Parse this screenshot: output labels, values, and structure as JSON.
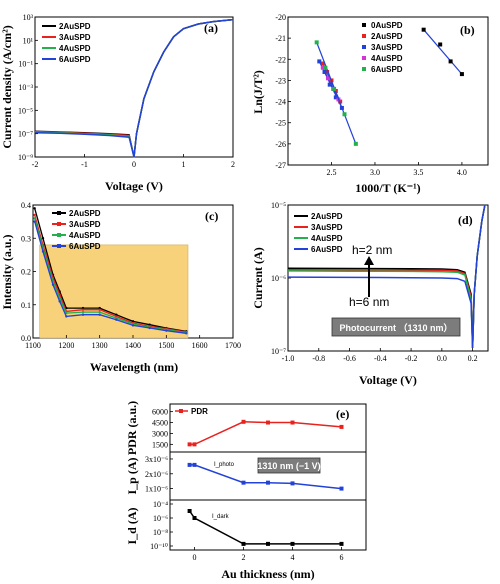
{
  "chart_data": [
    {
      "id": "a",
      "type": "line",
      "panel_label": "(a)",
      "xlabel": "Voltage (V)",
      "ylabel": "Current density (A/cm²)",
      "xlim": [
        -2,
        2
      ],
      "ylim_exp": [
        -9,
        3
      ],
      "yscale": "log",
      "xticks": [
        "-2",
        "-1",
        "0",
        "1",
        "2"
      ],
      "yticks": [
        "10⁻⁹",
        "10⁻⁷",
        "10⁻⁵",
        "10⁻³",
        "10⁻¹",
        "10¹",
        "10³"
      ],
      "legend": [
        "2AuSPD",
        "3AuSPD",
        "4AuSPD",
        "6AuSPD"
      ],
      "colors": [
        "#000000",
        "#e8231f",
        "#22b14c",
        "#2342d8"
      ],
      "series": [
        {
          "name": "2AuSPD",
          "x": [
            -2,
            -1.5,
            -1,
            -0.5,
            -0.1,
            0,
            0.05,
            0.2,
            0.4,
            0.6,
            0.8,
            1.0,
            1.3,
            1.6,
            2.0
          ],
          "y": [
            1.6e-07,
            1.4e-07,
            1.2e-07,
            1e-07,
            8e-08,
            1e-09,
            1e-07,
            0.0001,
            0.02,
            1.0,
            20,
            100,
            250,
            400,
            600
          ]
        },
        {
          "name": "3AuSPD",
          "x": [
            -2,
            -1.5,
            -1,
            -0.5,
            -0.1,
            0,
            0.05,
            0.2,
            0.4,
            0.6,
            0.8,
            1.0,
            1.3,
            1.6,
            2.0
          ],
          "y": [
            1.5e-07,
            1.3e-07,
            1.1e-07,
            9e-08,
            7e-08,
            1e-09,
            1e-07,
            0.0001,
            0.02,
            1.0,
            20,
            100,
            250,
            400,
            600
          ]
        },
        {
          "name": "4AuSPD",
          "x": [
            -2,
            -1.5,
            -1,
            -0.5,
            -0.1,
            0,
            0.05,
            0.2,
            0.4,
            0.6,
            0.8,
            1.0,
            1.3,
            1.6,
            2.0
          ],
          "y": [
            1.3e-07,
            1.2e-07,
            1e-07,
            8e-08,
            6e-08,
            1e-09,
            1e-07,
            0.0001,
            0.02,
            1.0,
            20,
            100,
            250,
            400,
            600
          ]
        },
        {
          "name": "6AuSPD",
          "x": [
            -2,
            -1.5,
            -1,
            -0.5,
            -0.1,
            0,
            0.05,
            0.2,
            0.4,
            0.6,
            0.8,
            1.0,
            1.3,
            1.6,
            2.0
          ],
          "y": [
            1.2e-07,
            1.1e-07,
            9e-08,
            7e-08,
            5e-08,
            1e-09,
            1e-07,
            0.0001,
            0.02,
            1.0,
            20,
            100,
            250,
            400,
            600
          ]
        }
      ]
    },
    {
      "id": "b",
      "type": "scatter",
      "panel_label": "(b)",
      "xlabel": "1000/T (K⁻¹)",
      "ylabel": "Ln(J/T²)",
      "xlim": [
        2.0,
        4.3
      ],
      "ylim": [
        -27,
        -20
      ],
      "xticks": [
        "2.5",
        "3.0",
        "3.5",
        "4.0"
      ],
      "yticks": [
        "-20",
        "-21",
        "-22",
        "-23",
        "-24",
        "-25",
        "-26",
        "-27"
      ],
      "legend": [
        "0AuSPD",
        "2AuSPD",
        "3AuSPD",
        "4AuSPD",
        "6AuSPD"
      ],
      "colors": [
        "#000000",
        "#e8231f",
        "#2342d8",
        "#d633d6",
        "#22b14c"
      ],
      "series": [
        {
          "name": "0AuSPD",
          "x": [
            3.56,
            3.75,
            3.87,
            4.0
          ],
          "y": [
            -20.6,
            -21.3,
            -22.1,
            -22.7
          ]
        },
        {
          "name": "2AuSPD",
          "x": [
            2.4,
            2.45,
            2.5,
            2.55,
            2.6
          ],
          "y": [
            -22.2,
            -22.6,
            -23.0,
            -23.5,
            -24.0
          ]
        },
        {
          "name": "3AuSPD",
          "x": [
            2.36,
            2.42,
            2.48,
            2.55,
            2.62
          ],
          "y": [
            -22.1,
            -22.6,
            -23.2,
            -23.8,
            -24.3
          ]
        },
        {
          "name": "4AuSPD",
          "x": [
            2.4,
            2.46,
            2.52,
            2.58
          ],
          "y": [
            -22.4,
            -22.9,
            -23.4,
            -23.9
          ]
        },
        {
          "name": "6AuSPD",
          "x": [
            2.33,
            2.43,
            2.53,
            2.65,
            2.78
          ],
          "y": [
            -21.2,
            -22.4,
            -23.4,
            -24.6,
            -26.0
          ]
        }
      ]
    },
    {
      "id": "c",
      "type": "line",
      "panel_label": "(c)",
      "xlabel": "Wavelength (nm)",
      "ylabel": "Intensity (a.u.)",
      "xlim": [
        1100,
        1700
      ],
      "ylim": [
        0.0,
        0.4
      ],
      "xticks": [
        "1100",
        "1200",
        "1300",
        "1400",
        "1500",
        "1600",
        "1700"
      ],
      "yticks": [
        "0.0",
        "0.1",
        "0.2",
        "0.3",
        "0.4"
      ],
      "highlight_range_x": [
        1120,
        1565
      ],
      "highlight_range_y": [
        0.0,
        0.28
      ],
      "highlight_color": "#f7d27a",
      "legend": [
        "2AuSPD",
        "3AuSPD",
        "4AuSPD",
        "6AuSPD"
      ],
      "colors": [
        "#000000",
        "#e8231f",
        "#22b14c",
        "#2342d8"
      ],
      "series": [
        {
          "name": "2AuSPD",
          "x": [
            1105,
            1130,
            1160,
            1180,
            1200,
            1250,
            1300,
            1350,
            1400,
            1450,
            1500,
            1560
          ],
          "y": [
            0.39,
            0.3,
            0.19,
            0.14,
            0.09,
            0.09,
            0.09,
            0.07,
            0.05,
            0.04,
            0.03,
            0.02
          ]
        },
        {
          "name": "3AuSPD",
          "x": [
            1105,
            1130,
            1160,
            1180,
            1200,
            1250,
            1300,
            1350,
            1400,
            1450,
            1500,
            1560
          ],
          "y": [
            0.37,
            0.28,
            0.18,
            0.13,
            0.08,
            0.085,
            0.085,
            0.065,
            0.045,
            0.035,
            0.028,
            0.018
          ]
        },
        {
          "name": "4AuSPD",
          "x": [
            1105,
            1130,
            1160,
            1180,
            1200,
            1250,
            1300,
            1350,
            1400,
            1450,
            1500,
            1560
          ],
          "y": [
            0.36,
            0.27,
            0.17,
            0.12,
            0.075,
            0.078,
            0.078,
            0.06,
            0.042,
            0.032,
            0.025,
            0.016
          ]
        },
        {
          "name": "6AuSPD",
          "x": [
            1105,
            1130,
            1160,
            1180,
            1200,
            1250,
            1300,
            1350,
            1400,
            1450,
            1500,
            1560
          ],
          "y": [
            0.35,
            0.26,
            0.16,
            0.11,
            0.065,
            0.07,
            0.07,
            0.055,
            0.038,
            0.03,
            0.022,
            0.014
          ]
        }
      ]
    },
    {
      "id": "d",
      "type": "line",
      "panel_label": "(d)",
      "xlabel": "Voltage (V)",
      "ylabel": "Current (A)",
      "xlim": [
        -1.0,
        0.3
      ],
      "ylim_exp": [
        -7,
        -5
      ],
      "yscale": "log",
      "xticks": [
        "-1.0",
        "-0.8",
        "-0.6",
        "-0.4",
        "-0.2",
        "0.0",
        "0.2"
      ],
      "yticks": [
        "10⁻⁷",
        "10⁻⁶",
        "10⁻⁵"
      ],
      "legend": [
        "2AuSPD",
        "3AuSPD",
        "4AuSPD",
        "6AuSPD"
      ],
      "colors": [
        "#000000",
        "#e8231f",
        "#22b14c",
        "#2342d8"
      ],
      "annotations": [
        "h=2 nm",
        "h=6 nm"
      ],
      "label_box": "Photocurrent （1310 nm）",
      "series": [
        {
          "name": "2AuSPD",
          "x": [
            -1.0,
            -0.6,
            -0.2,
            0.0,
            0.1,
            0.15,
            0.19,
            0.2,
            0.21,
            0.23,
            0.26,
            0.28
          ],
          "y": [
            1.36e-06,
            1.35e-06,
            1.34e-06,
            1.33e-06,
            1.3e-06,
            1.2e-06,
            6e-07,
            1.1e-07,
            6e-07,
            2e-06,
            6e-06,
            1e-05
          ]
        },
        {
          "name": "3AuSPD",
          "x": [
            -1.0,
            -0.6,
            -0.2,
            0.0,
            0.1,
            0.15,
            0.19,
            0.2,
            0.21,
            0.23,
            0.26,
            0.28
          ],
          "y": [
            1.3e-06,
            1.29e-06,
            1.28e-06,
            1.27e-06,
            1.25e-06,
            1.15e-06,
            5.5e-07,
            1.1e-07,
            6e-07,
            2e-06,
            6e-06,
            1e-05
          ]
        },
        {
          "name": "4AuSPD",
          "x": [
            -1.0,
            -0.6,
            -0.2,
            0.0,
            0.1,
            0.15,
            0.19,
            0.2,
            0.21,
            0.23,
            0.26,
            0.28
          ],
          "y": [
            1.25e-06,
            1.24e-06,
            1.23e-06,
            1.22e-06,
            1.2e-06,
            1.1e-06,
            5e-07,
            1.1e-07,
            6e-07,
            2e-06,
            6e-06,
            1e-05
          ]
        },
        {
          "name": "6AuSPD",
          "x": [
            -1.0,
            -0.6,
            -0.2,
            0.0,
            0.1,
            0.15,
            0.19,
            0.2,
            0.21,
            0.23,
            0.26,
            0.28
          ],
          "y": [
            1.03e-06,
            1.02e-06,
            1.01e-06,
            1e-06,
            9.8e-07,
            9e-07,
            4.5e-07,
            1.1e-07,
            6e-07,
            2e-06,
            6e-06,
            1e-05
          ]
        }
      ]
    },
    {
      "id": "e",
      "type": "line",
      "panel_label": "(e)",
      "xlabel": "Au thickness (nm)",
      "xlim": [
        -1,
        7
      ],
      "xticks": [
        "0",
        "2",
        "4",
        "6"
      ],
      "label_box": "1310 nm (−1 V)",
      "subpanels": [
        {
          "ylabel": "PDR (a.u.)",
          "legend": "PDR",
          "color": "#e8231f",
          "ylim": [
            1000,
            6500
          ],
          "yticks": [
            "1500",
            "3000",
            "4500",
            "6000"
          ],
          "x": [
            -0.2,
            0,
            2,
            3,
            4,
            6
          ],
          "y": [
            1500,
            1500,
            4600,
            4500,
            4500,
            3900
          ]
        },
        {
          "ylabel": "I_p (A)",
          "inline_label": "I_photo",
          "color": "#2342d8",
          "ylim": [
            5e-07,
            3.2e-06
          ],
          "yticks": [
            "1x10⁻⁶",
            "2x10⁻⁶",
            "3x10⁻⁶"
          ],
          "x": [
            -0.2,
            0,
            2,
            3,
            4,
            6
          ],
          "y": [
            2.6e-06,
            2.6e-06,
            1.4e-06,
            1.4e-06,
            1.35e-06,
            1e-06
          ]
        },
        {
          "ylabel": "I_d (A)",
          "inline_label": "I_dark",
          "yscale": "log",
          "color": "#000000",
          "ylim_exp": [
            -10,
            -4
          ],
          "yticks": [
            "10⁻¹⁰",
            "10⁻⁸",
            "10⁻⁶",
            "10⁻⁴"
          ],
          "x": [
            -0.2,
            0,
            2,
            3,
            4,
            6
          ],
          "y": [
            1e-05,
            1e-06,
            2e-10,
            2e-10,
            2e-10,
            2e-10
          ]
        }
      ]
    }
  ]
}
